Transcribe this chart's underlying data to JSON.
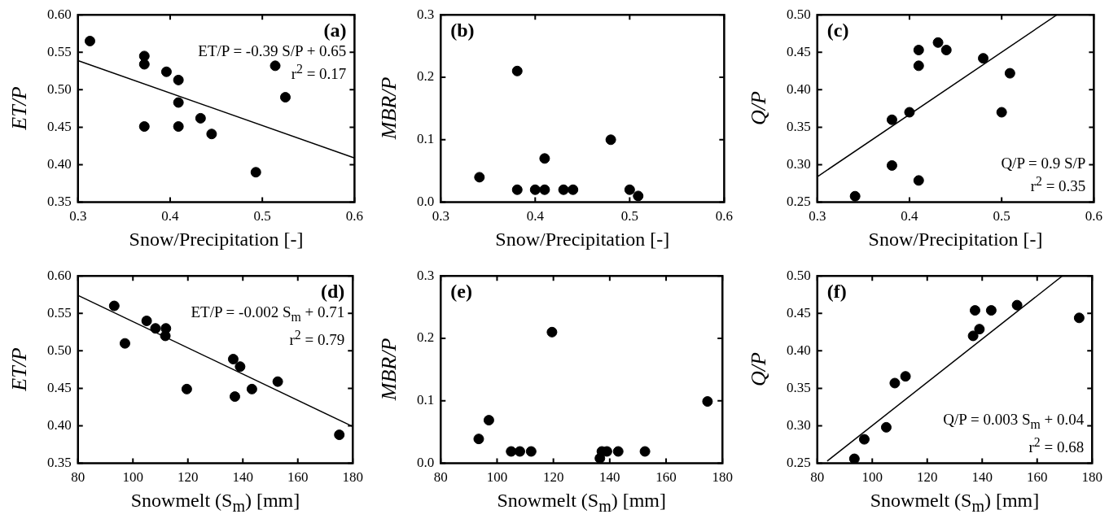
{
  "chart_data": [
    {
      "type": "scatter",
      "xlabel": "Snow/Precipitation [-]",
      "ylabel": "ET/P",
      "xlim": [
        0.3,
        0.6
      ],
      "xticks": [
        0.3,
        0.4,
        0.5,
        0.6
      ],
      "ylim": [
        0.35,
        0.6
      ],
      "yticks": [
        0.35,
        {
          "value": 0.4,
          "label": "0.40"
        },
        0.45,
        {
          "value": 0.5,
          "label": "0.50"
        },
        0.55,
        {
          "value": 0.6,
          "label": "0.60"
        }
      ],
      "annotations": [
        "(a)",
        "ET/P = -0.39 S/P + 0.65",
        "r$^{2}$ = 0.17"
      ],
      "series": [
        {
          "type": "scatter",
          "marker": "circle",
          "color": "#000000",
          "x": [
            0.313,
            0.372,
            0.372,
            0.396,
            0.409,
            0.409,
            0.372,
            0.409,
            0.433,
            0.445,
            0.493,
            0.514,
            0.525
          ],
          "values": [
            0.565,
            0.545,
            0.534,
            0.524,
            0.513,
            0.483,
            0.451,
            0.451,
            0.462,
            0.441,
            0.39,
            0.532,
            0.49
          ]
        },
        {
          "type": "line",
          "color": "#000000",
          "x": [
            0.3,
            0.6
          ],
          "values": [
            0.539,
            0.409
          ]
        }
      ]
    },
    {
      "type": "scatter",
      "xlabel": "Snow/Precipitation [-]",
      "ylabel": "MBR/P",
      "xlim": [
        0.3,
        0.6
      ],
      "xticks": [
        0.3,
        0.4,
        0.5,
        0.6
      ],
      "ylim": [
        0,
        0.3
      ],
      "yticks": [
        {
          "value": 0,
          "label": "0.0"
        },
        0.1,
        0.2,
        0.3
      ],
      "annotations": [
        "(b)"
      ],
      "series": [
        {
          "type": "scatter",
          "marker": "circle",
          "color": "#000000",
          "x": [
            0.341,
            0.381,
            0.381,
            0.4,
            0.41,
            0.41,
            0.43,
            0.44,
            0.48,
            0.5,
            0.509
          ],
          "values": [
            0.04,
            0.21,
            0.02,
            0.02,
            0.02,
            0.07,
            0.02,
            0.02,
            0.1,
            0.02,
            0.01
          ]
        }
      ]
    },
    {
      "type": "scatter",
      "xlabel": "Snow/Precipitation [-]",
      "ylabel": "Q/P",
      "xlim": [
        0.3,
        0.6
      ],
      "xticks": [
        0.3,
        0.4,
        0.5,
        0.6
      ],
      "ylim": [
        0.25,
        0.5
      ],
      "yticks": [
        0.25,
        {
          "value": 0.3,
          "label": "0.30"
        },
        0.35,
        {
          "value": 0.4,
          "label": "0.40"
        },
        0.45,
        {
          "value": 0.5,
          "label": "0.50"
        }
      ],
      "annotations": [
        "(c)",
        "Q/P = 0.9 S/P",
        "r$^{2}$ = 0.35"
      ],
      "series": [
        {
          "type": "scatter",
          "marker": "circle",
          "color": "#000000",
          "x": [
            0.341,
            0.381,
            0.381,
            0.4,
            0.41,
            0.41,
            0.41,
            0.431,
            0.44,
            0.48,
            0.5,
            0.509
          ],
          "values": [
            0.258,
            0.299,
            0.36,
            0.37,
            0.279,
            0.432,
            0.453,
            0.463,
            0.453,
            0.442,
            0.37,
            0.422
          ]
        },
        {
          "type": "line",
          "color": "#000000",
          "x": [
            0.3,
            0.56
          ],
          "values": [
            0.284,
            0.5
          ]
        }
      ]
    },
    {
      "type": "scatter",
      "xlabel": "Snowmelt (S$_{m}$) [mm]",
      "ylabel": "ET/P",
      "xlim": [
        80,
        180
      ],
      "xticks": [
        80,
        100,
        120,
        140,
        160,
        180
      ],
      "ylim": [
        0.35,
        0.6
      ],
      "yticks": [
        0.35,
        {
          "value": 0.4,
          "label": "0.40"
        },
        0.45,
        {
          "value": 0.5,
          "label": "0.50"
        },
        0.55,
        {
          "value": 0.6,
          "label": "0.60"
        }
      ],
      "annotations": [
        "(d)",
        "ET/P = -0.002 S$_{m}$ + 0.71",
        "r$^{2}$ = 0.79"
      ],
      "series": [
        {
          "type": "scatter",
          "marker": "circle",
          "color": "#000000",
          "x": [
            93.2,
            97.1,
            105,
            108.2,
            112,
            111.8,
            119.6,
            136.5,
            139,
            137.1,
            143.3,
            152.7,
            175.1
          ],
          "values": [
            0.56,
            0.51,
            0.54,
            0.53,
            0.53,
            0.52,
            0.449,
            0.489,
            0.479,
            0.439,
            0.449,
            0.459,
            0.388
          ]
        },
        {
          "type": "line",
          "color": "#000000",
          "x": [
            80,
            180
          ],
          "values": [
            0.574,
            0.399
          ]
        }
      ]
    },
    {
      "type": "scatter",
      "xlabel": "Snowmelt (S$_{m}$) [mm]",
      "ylabel": "MBR/P",
      "xlim": [
        80,
        180
      ],
      "xticks": [
        80,
        100,
        120,
        140,
        160,
        180
      ],
      "ylim": [
        0,
        0.3
      ],
      "yticks": [
        {
          "value": 0,
          "label": "0.0"
        },
        0.1,
        0.2,
        0.3
      ],
      "annotations": [
        "(e)"
      ],
      "series": [
        {
          "type": "scatter",
          "marker": "circle",
          "color": "#000000",
          "x": [
            93.5,
            97.1,
            105,
            108.1,
            112.1,
            119.5,
            136.5,
            137.2,
            139,
            143,
            152.5,
            174.7
          ],
          "values": [
            0.039,
            0.069,
            0.019,
            0.019,
            0.019,
            0.21,
            0.008,
            0.019,
            0.019,
            0.019,
            0.019,
            0.099
          ]
        }
      ]
    },
    {
      "type": "scatter",
      "xlabel": "Snowmelt (S$_{m}$) [mm]",
      "ylabel": "Q/P",
      "xlim": [
        80,
        180
      ],
      "xticks": [
        80,
        100,
        120,
        140,
        160,
        180
      ],
      "ylim": [
        0.25,
        0.5
      ],
      "yticks": [
        0.25,
        {
          "value": 0.3,
          "label": "0.30"
        },
        0.35,
        {
          "value": 0.4,
          "label": "0.40"
        },
        0.45,
        {
          "value": 0.5,
          "label": "0.50"
        }
      ],
      "annotations": [
        "(f)",
        "Q/P = 0.003 S$_{m}$ + 0.04",
        "r$^{2}$ = 0.68"
      ],
      "series": [
        {
          "type": "scatter",
          "marker": "circle",
          "color": "#000000",
          "x": [
            93.5,
            97.1,
            105.1,
            108.2,
            112.1,
            136.7,
            137.4,
            139,
            143.3,
            152.7,
            175.3
          ],
          "values": [
            0.256,
            0.282,
            0.298,
            0.357,
            0.366,
            0.42,
            0.454,
            0.429,
            0.454,
            0.461,
            0.444
          ]
        },
        {
          "type": "line",
          "color": "#000000",
          "x": [
            83.6,
            169.2
          ],
          "values": [
            0.253,
            0.5
          ]
        }
      ]
    }
  ]
}
